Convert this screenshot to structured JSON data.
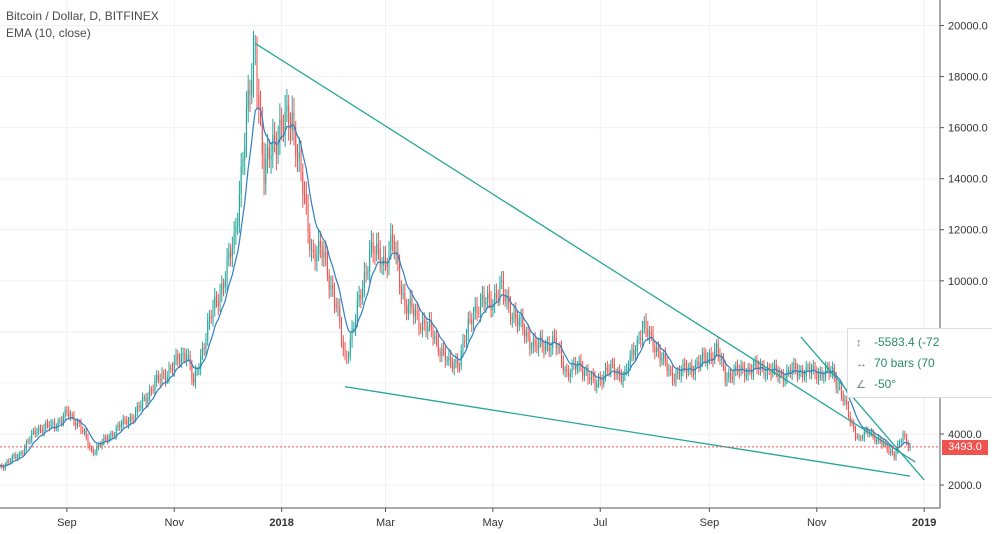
{
  "legend": {
    "symbol": "Bitcoin / Dollar, D, BITFINEX",
    "indicator": "EMA (10, close)"
  },
  "measurement": {
    "price_change": "-5583.4 (-72",
    "bars": "70 bars (70",
    "angle": "-50°",
    "price_icon": "vertical-measure-icon",
    "bars_icon": "horizontal-measure-icon",
    "angle_icon": "angle-icon"
  },
  "last_price": "3493.0",
  "colors": {
    "up": "#26a69a",
    "down": "#ef5350",
    "ema": "#2f7fc1",
    "trendline": "#26a69a",
    "grid": "#eef0f3"
  },
  "chart_data": {
    "type": "candlestick",
    "title": "Bitcoin / Dollar, D, BITFINEX",
    "series": [
      {
        "name": "Bitcoin / Dollar",
        "kind": "ohlc-close-path",
        "note_points": "approximate daily closes"
      },
      {
        "name": "EMA (10, close)",
        "kind": "line"
      }
    ],
    "x_ticks": [
      "Sep",
      "Nov",
      "2018",
      "Mar",
      "May",
      "Jul",
      "Sep",
      "Nov",
      "2019"
    ],
    "y_ticks": [
      "2000.0",
      "4000.0",
      "6000.0",
      "8000.0",
      "10000.0",
      "12000.0",
      "14000.0",
      "16000.0",
      "18000.0",
      "20000.0"
    ],
    "ylim": [
      1100,
      21000
    ],
    "xlim": [
      "2017-07-25",
      "2019-01-10"
    ],
    "closes": [
      [
        "2017-07-25",
        2700
      ],
      [
        "2017-08-05",
        3200
      ],
      [
        "2017-08-15",
        4200
      ],
      [
        "2017-08-25",
        4350
      ],
      [
        "2017-09-01",
        4800
      ],
      [
        "2017-09-08",
        4400
      ],
      [
        "2017-09-15",
        3300
      ],
      [
        "2017-09-22",
        3700
      ],
      [
        "2017-10-01",
        4300
      ],
      [
        "2017-10-10",
        4800
      ],
      [
        "2017-10-20",
        5900
      ],
      [
        "2017-11-01",
        6700
      ],
      [
        "2017-11-08",
        7300
      ],
      [
        "2017-11-12",
        5900
      ],
      [
        "2017-11-20",
        8200
      ],
      [
        "2017-11-28",
        9800
      ],
      [
        "2017-12-05",
        11500
      ],
      [
        "2017-12-10",
        15000
      ],
      [
        "2017-12-17",
        19200
      ],
      [
        "2017-12-22",
        14000
      ],
      [
        "2017-12-27",
        15500
      ],
      [
        "2018-01-07",
        16500
      ],
      [
        "2018-01-12",
        14000
      ],
      [
        "2018-01-18",
        11200
      ],
      [
        "2018-01-25",
        11000
      ],
      [
        "2018-02-01",
        9000
      ],
      [
        "2018-02-06",
        6900
      ],
      [
        "2018-02-12",
        8500
      ],
      [
        "2018-02-20",
        11200
      ],
      [
        "2018-03-01",
        10800
      ],
      [
        "2018-03-05",
        11500
      ],
      [
        "2018-03-12",
        9100
      ],
      [
        "2018-03-20",
        8500
      ],
      [
        "2018-03-28",
        7900
      ],
      [
        "2018-04-06",
        6700
      ],
      [
        "2018-04-12",
        6900
      ],
      [
        "2018-04-20",
        8900
      ],
      [
        "2018-05-01",
        9300
      ],
      [
        "2018-05-05",
        9700
      ],
      [
        "2018-05-15",
        8400
      ],
      [
        "2018-05-25",
        7400
      ],
      [
        "2018-06-05",
        7600
      ],
      [
        "2018-06-12",
        6400
      ],
      [
        "2018-06-20",
        6700
      ],
      [
        "2018-06-28",
        5900
      ],
      [
        "2018-07-05",
        6550
      ],
      [
        "2018-07-15",
        6300
      ],
      [
        "2018-07-25",
        8200
      ],
      [
        "2018-08-01",
        7500
      ],
      [
        "2018-08-10",
        6300
      ],
      [
        "2018-08-15",
        6400
      ],
      [
        "2018-08-25",
        6700
      ],
      [
        "2018-09-05",
        7300
      ],
      [
        "2018-09-10",
        6300
      ],
      [
        "2018-09-20",
        6500
      ],
      [
        "2018-10-01",
        6600
      ],
      [
        "2018-10-12",
        6300
      ],
      [
        "2018-10-20",
        6500
      ],
      [
        "2018-11-01",
        6400
      ],
      [
        "2018-11-10",
        6400
      ],
      [
        "2018-11-15",
        5600
      ],
      [
        "2018-11-20",
        4500
      ],
      [
        "2018-11-25",
        3800
      ],
      [
        "2018-12-01",
        4100
      ],
      [
        "2018-12-08",
        3600
      ],
      [
        "2018-12-15",
        3200
      ],
      [
        "2018-12-20",
        3900
      ],
      [
        "2018-12-24",
        3493
      ]
    ],
    "trendlines": [
      {
        "from": [
          "2017-12-17",
          19300
        ],
        "to": [
          "2018-12-27",
          2900
        ]
      },
      {
        "from": [
          "2018-02-06",
          5850
        ],
        "to": [
          "2018-12-24",
          2350
        ]
      },
      {
        "from": [
          "2018-10-23",
          7800
        ],
        "to": [
          "2019-01-01",
          2200
        ]
      }
    ],
    "last_price_line": 3493.0
  }
}
